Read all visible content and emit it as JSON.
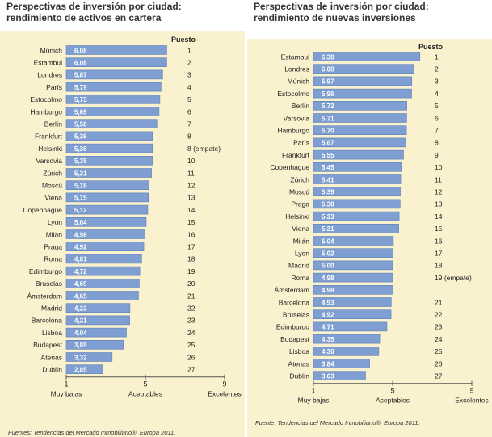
{
  "colors": {
    "bar": "#7f9fd2",
    "bar_border": "#5a7fba",
    "background": "#faf1cf",
    "axis": "#555555"
  },
  "chart_data": [
    {
      "type": "bar",
      "orientation": "horizontal",
      "title": "Perspectivas de inversión por ciudad: rendimiento de activos en cartera",
      "rank_header": "Puesto",
      "categories": [
        "Múnich",
        "Estambul",
        "Londres",
        "París",
        "Estocolmo",
        "Hamburgo",
        "Berlín",
        "Frankfurt",
        "Helsinki",
        "Varsovia",
        "Zúrich",
        "Moscú",
        "Viena",
        "Copenhague",
        "Lyon",
        "Milán",
        "Praga",
        "Roma",
        "Edimburgo",
        "Bruselas",
        "Ámsterdam",
        "Madrid",
        "Barcelona",
        "Lisboa",
        "Budapest",
        "Atenas",
        "Dublín"
      ],
      "values": [
        6.08,
        6.08,
        5.87,
        5.79,
        5.73,
        5.69,
        5.58,
        5.36,
        5.36,
        5.35,
        5.31,
        5.18,
        5.15,
        5.12,
        5.04,
        4.98,
        4.92,
        4.81,
        4.72,
        4.69,
        4.65,
        4.22,
        4.21,
        4.04,
        3.89,
        3.32,
        2.85
      ],
      "value_labels": [
        "6.08",
        "6.08",
        "5,87",
        "5,79",
        "5,73",
        "5,69",
        "5,58",
        "5,36",
        "5,36",
        "5,35",
        "5,31",
        "5,18",
        "5,15",
        "5,12",
        "5.04",
        "4,98",
        "4,92",
        "4,81",
        "4,72",
        "4,69",
        "4,65",
        "4,22",
        "4,21",
        "4.04",
        "3,89",
        "3,32",
        "2,85"
      ],
      "ranks": [
        "1",
        "2",
        "3",
        "4",
        "5",
        "6",
        "7",
        "8",
        "8 (empate)",
        "10",
        "11",
        "12",
        "13",
        "14",
        "15",
        "16",
        "17",
        "18",
        "19",
        "20",
        "21",
        "22",
        "23",
        "24",
        "25",
        "26",
        "27"
      ],
      "xlim": [
        1,
        9
      ],
      "xticks": [
        "1",
        "5",
        "9"
      ],
      "xtick_values": [
        1,
        5,
        9
      ],
      "scale_labels": [
        "Muy bajas",
        "Aceptables",
        "Excelentes"
      ],
      "source": "Fuentes: Tendencias del Mercado Inmobiliario®, Europa 2011."
    },
    {
      "type": "bar",
      "orientation": "horizontal",
      "title": "Perspectivas de inversión por ciudad: rendimiento de nuevas inversiones",
      "rank_header": "Puesto",
      "categories": [
        "Estambul",
        "Londres",
        "Múnich",
        "Estocolmo",
        "Berlín",
        "Varsovia",
        "Hamburgo",
        "París",
        "Frankfurt",
        "Copenhague",
        "Zúrich",
        "Moscú",
        "Praga",
        "Helsinki",
        "Viena",
        "Milán",
        "Lyon",
        "Madrid",
        "Roma",
        "Ámsterdam",
        "Barcelona",
        "Bruselas",
        "Edimburgo",
        "Budapest",
        "Lisboa",
        "Atenas",
        "Dublín"
      ],
      "values": [
        6.38,
        6.08,
        5.97,
        5.96,
        5.72,
        5.71,
        5.7,
        5.67,
        5.55,
        5.45,
        5.41,
        5.39,
        5.38,
        5.33,
        5.31,
        5.04,
        5.02,
        5.0,
        4.98,
        4.98,
        4.93,
        4.92,
        4.71,
        4.35,
        4.3,
        3.84,
        3.63
      ],
      "value_labels": [
        "6,38",
        "6.08",
        "5,97",
        "5,96",
        "5,72",
        "5,71",
        "5,70",
        "5,67",
        "5,55",
        "5,45",
        "5,41",
        "5,39",
        "5,38",
        "5,33",
        "5,31",
        "5.04",
        "5.02",
        "5.00",
        "4,98",
        "4,98",
        "4,93",
        "4,92",
        "4,71",
        "4,35",
        "4,30",
        "3,84",
        "3,63"
      ],
      "ranks": [
        "1",
        "2",
        "3",
        "4",
        "5",
        "6",
        "7",
        "8",
        "9",
        "10",
        "11",
        "12",
        "13",
        "14",
        "15",
        "16",
        "17",
        "18",
        "19 (empate)",
        "",
        "21",
        "22",
        "23",
        "24",
        "25",
        "26",
        "27"
      ],
      "xlim": [
        1,
        9
      ],
      "xticks": [
        "1",
        "5",
        "9"
      ],
      "xtick_values": [
        1,
        5,
        9
      ],
      "scale_labels": [
        "Muy bajas",
        "Aceptables",
        "Excelentes"
      ],
      "source": "Fuente: Tendencias del Mercado Inmobiliario®, Europa 2011."
    }
  ]
}
